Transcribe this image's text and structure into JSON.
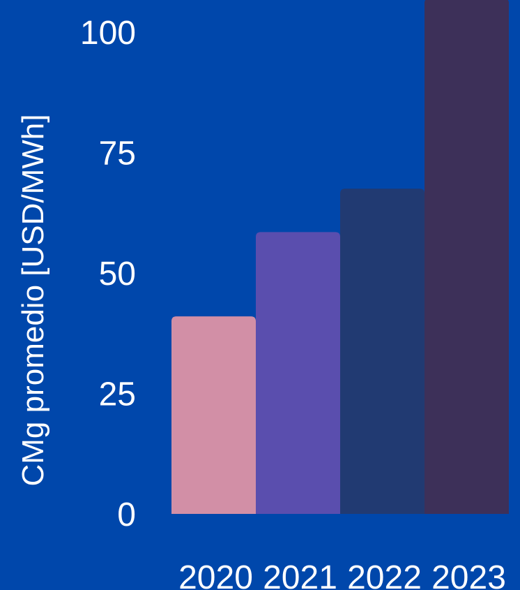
{
  "chart_data": {
    "type": "bar",
    "categories": [
      "2020",
      "2021",
      "2022",
      "2023"
    ],
    "values": [
      41,
      58.5,
      67.5,
      107
    ],
    "title": "",
    "xlabel": "",
    "ylabel": "CMg promedio [USD/MWh]",
    "ylim": [
      0,
      100
    ],
    "yticks": [
      "0",
      "25",
      "50",
      "75",
      "100"
    ],
    "colors": [
      "#D28FA6",
      "#5A4EAE",
      "#213A72",
      "#3D3059"
    ],
    "background": "#0047AB",
    "grid": false,
    "legend": "none"
  }
}
